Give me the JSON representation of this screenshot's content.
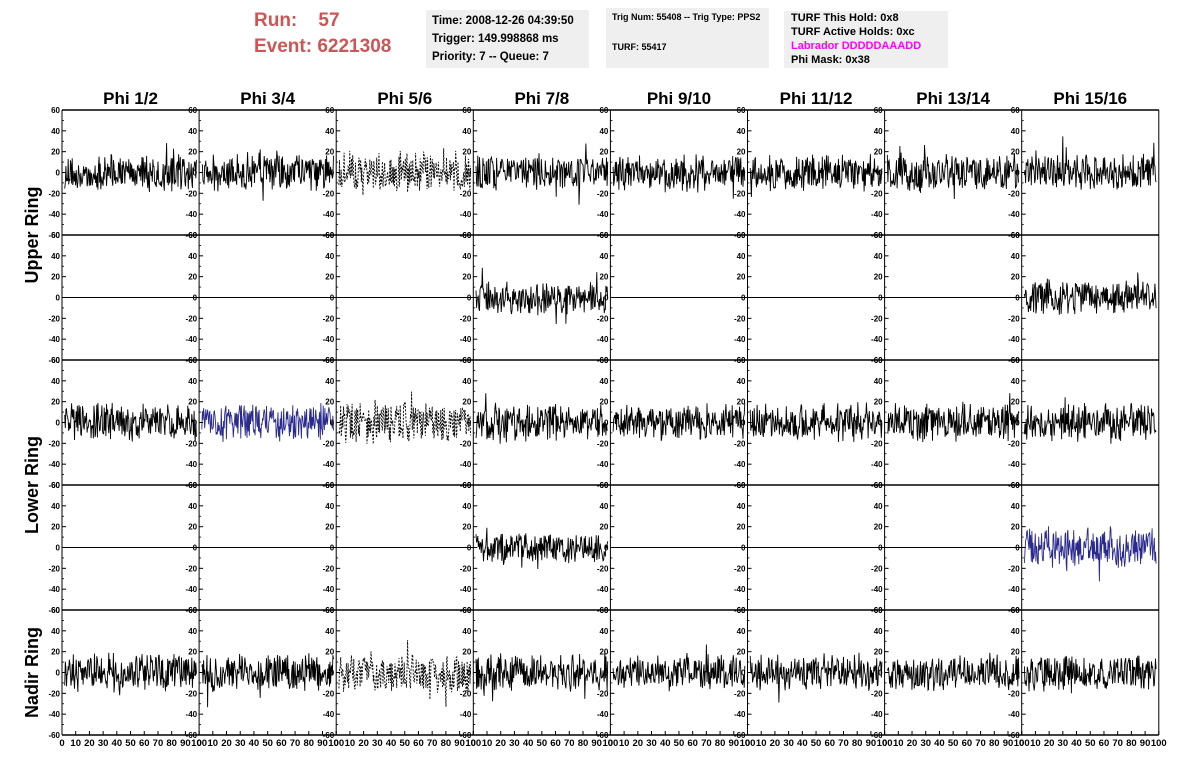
{
  "header": {
    "run_label": "Run:",
    "run_value": "57",
    "event_label": "Event:",
    "event_value": "6221308",
    "time": "Time: 2008-12-26 04:39:50",
    "trigger": "Trigger: 149.998868 ms",
    "priority_queue": "Priority: 7 -- Queue: 7",
    "trig_num_type": "Trig Num: 55408 -- Trig Type: PPS2",
    "turf": "TURF: 55417",
    "turf_this_hold": "TURF This Hold: 0x8",
    "turf_active_holds": "TURF Active Holds: 0xc",
    "labrador": "Labrador DDDDDAAADD",
    "phi_mask": "Phi Mask: 0x38"
  },
  "chart_data": {
    "type": "line",
    "columns": [
      "Phi 1/2",
      "Phi 3/4",
      "Phi 5/6",
      "Phi 7/8",
      "Phi 9/10",
      "Phi 11/12",
      "Phi 13/14",
      "Phi 15/16"
    ],
    "ring_labels": [
      "Upper Ring",
      "Lower Ring",
      "Nadir Ring"
    ],
    "xlim": [
      0,
      100
    ],
    "ylim": [
      -60,
      60
    ],
    "y_ticks": [
      -60,
      -40,
      -20,
      0,
      20,
      40,
      60
    ],
    "x_ticks": [
      0,
      10,
      20,
      30,
      40,
      50,
      60,
      70,
      80,
      90,
      100
    ],
    "row_style": {
      "flat_rows": [
        1,
        3
      ],
      "flat_row_active_columns": [
        3,
        7
      ],
      "dashed_column": 2,
      "blue_cells": [
        [
          2,
          1
        ],
        [
          3,
          7
        ]
      ],
      "trace_color": "#000000",
      "highlight_color": "#2b2b8f"
    },
    "amplitude": {
      "default": 20,
      "row1_active": 18,
      "row3_col3": 17,
      "row3_col7": 22,
      "dashed": 22
    }
  }
}
